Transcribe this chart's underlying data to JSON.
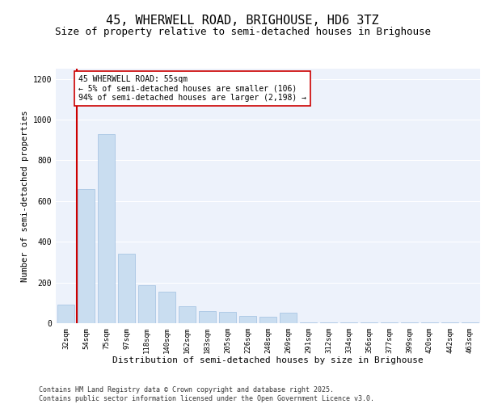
{
  "title": "45, WHERWELL ROAD, BRIGHOUSE, HD6 3TZ",
  "subtitle": "Size of property relative to semi-detached houses in Brighouse",
  "xlabel": "Distribution of semi-detached houses by size in Brighouse",
  "ylabel": "Number of semi-detached properties",
  "categories": [
    "32sqm",
    "54sqm",
    "75sqm",
    "97sqm",
    "118sqm",
    "140sqm",
    "162sqm",
    "183sqm",
    "205sqm",
    "226sqm",
    "248sqm",
    "269sqm",
    "291sqm",
    "312sqm",
    "334sqm",
    "356sqm",
    "377sqm",
    "399sqm",
    "420sqm",
    "442sqm",
    "463sqm"
  ],
  "values": [
    90,
    660,
    930,
    340,
    185,
    155,
    85,
    60,
    55,
    35,
    30,
    50,
    3,
    3,
    3,
    3,
    3,
    3,
    3,
    3,
    3
  ],
  "bar_color": "#c9ddf0",
  "bar_edge_color": "#a0c0e0",
  "vline_color": "#cc0000",
  "vline_x": 0.55,
  "annotation_text": "45 WHERWELL ROAD: 55sqm\n← 5% of semi-detached houses are smaller (106)\n94% of semi-detached houses are larger (2,198) →",
  "annotation_box_facecolor": "#ffffff",
  "annotation_box_edgecolor": "#cc0000",
  "ylim": [
    0,
    1250
  ],
  "yticks": [
    0,
    200,
    400,
    600,
    800,
    1000,
    1200
  ],
  "background_color": "#edf2fb",
  "grid_color": "#ffffff",
  "footer_text": "Contains HM Land Registry data © Crown copyright and database right 2025.\nContains public sector information licensed under the Open Government Licence v3.0.",
  "title_fontsize": 11,
  "subtitle_fontsize": 9,
  "xlabel_fontsize": 8,
  "ylabel_fontsize": 7.5,
  "tick_fontsize": 6.5,
  "annotation_fontsize": 7,
  "footer_fontsize": 6
}
